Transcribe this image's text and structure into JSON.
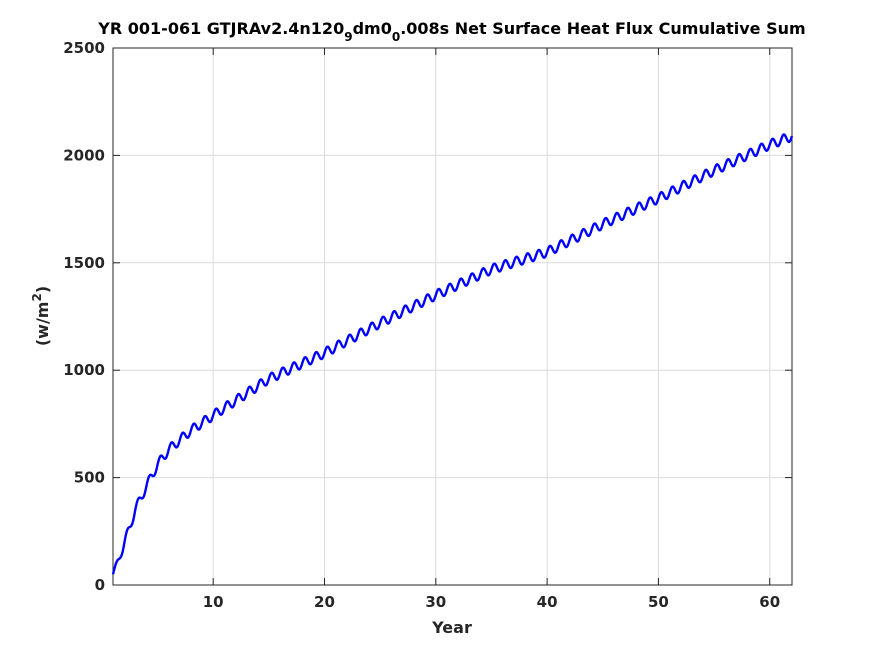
{
  "chart_data": {
    "type": "line",
    "title": {
      "part1": "YR 001-061 GTJRAv2.4n120",
      "sub1": "9",
      "part2": "dm0",
      "sub2": "0",
      "part3": ".008s Net Surface Heat Flux  Cumulative Sum"
    },
    "xlabel": "Year",
    "ylabel": {
      "prefix": "(w/m",
      "sup": "2",
      "suffix": ")"
    },
    "xlim": [
      1,
      62
    ],
    "ylim": [
      0,
      2500
    ],
    "xticks": [
      10,
      20,
      30,
      40,
      50,
      60
    ],
    "yticks": [
      0,
      500,
      1000,
      1500,
      2000,
      2500
    ],
    "grid": true,
    "line_color": "#0000ff",
    "trend_knots": {
      "x": [
        1,
        2,
        3,
        4,
        5,
        6,
        8,
        10,
        15,
        20,
        25,
        30,
        35,
        40,
        45,
        50,
        55,
        60,
        62
      ],
      "y": [
        50,
        190,
        350,
        460,
        560,
        630,
        720,
        790,
        960,
        1080,
        1220,
        1350,
        1470,
        1550,
        1680,
        1800,
        1930,
        2050,
        2090
      ]
    },
    "seasonal_amplitude": 22,
    "cycle_period_years": 1
  }
}
